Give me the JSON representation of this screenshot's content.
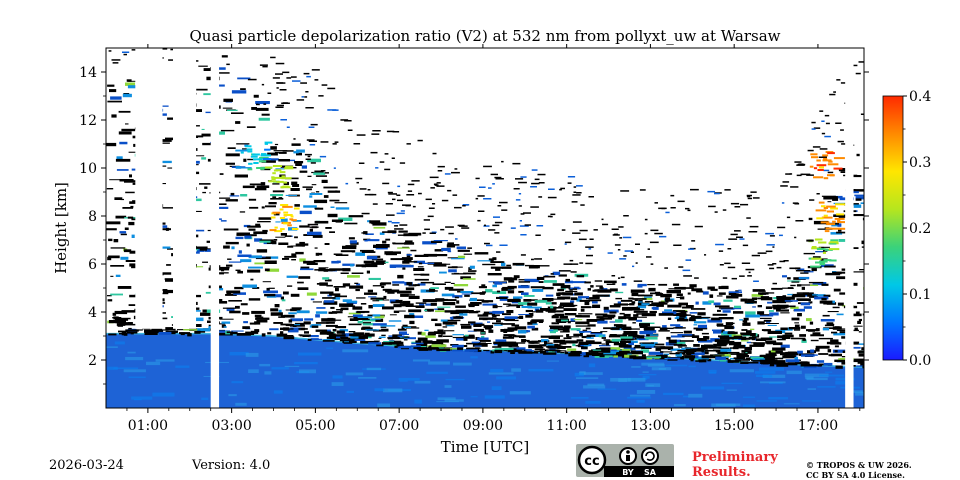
{
  "chart_data": {
    "type": "heatmap",
    "title": "Quasi particle depolarization ratio (V2) at 532 nm from pollyxt_uw at Warsaw",
    "xlabel": "Time [UTC]",
    "ylabel": "Height [km]",
    "xlim": [
      0.0,
      18.1
    ],
    "ylim": [
      0.0,
      15.0
    ],
    "x_ticks": [
      1,
      3,
      5,
      7,
      9,
      11,
      13,
      15,
      17
    ],
    "x_tick_labels": [
      "01:00",
      "03:00",
      "05:00",
      "07:00",
      "09:00",
      "11:00",
      "13:00",
      "15:00",
      "17:00"
    ],
    "y_ticks": [
      2,
      4,
      6,
      8,
      10,
      12,
      14
    ],
    "y_tick_labels": [
      "2",
      "4",
      "6",
      "8",
      "10",
      "12",
      "14"
    ],
    "colorbar": {
      "range": [
        0.0,
        0.4
      ],
      "ticks": [
        0.0,
        0.1,
        0.2,
        0.3,
        0.4
      ],
      "tick_labels": [
        "0.0",
        "0.1",
        "0.2",
        "0.3",
        "0.4"
      ],
      "colors": [
        "#1a1aff",
        "#0077ff",
        "#00c8e6",
        "#3bd27a",
        "#b6e61e",
        "#ffe600",
        "#ff8a00",
        "#ff2a00"
      ]
    },
    "boundary_layer_top_km": [
      {
        "t": 0.0,
        "h": 3.1
      },
      {
        "t": 2.5,
        "h": 3.1
      },
      {
        "t": 4.0,
        "h": 3.0
      },
      {
        "t": 6.0,
        "h": 2.7
      },
      {
        "t": 8.0,
        "h": 2.45
      },
      {
        "t": 10.0,
        "h": 2.35
      },
      {
        "t": 12.0,
        "h": 2.2
      },
      {
        "t": 14.0,
        "h": 2.05
      },
      {
        "t": 16.0,
        "h": 1.85
      },
      {
        "t": 18.1,
        "h": 1.7
      }
    ],
    "cloud_top_km": [
      {
        "t": 0.0,
        "h": 13.5
      },
      {
        "t": 2.8,
        "h": 14.8
      },
      {
        "t": 4.5,
        "h": 11.0
      },
      {
        "t": 6.0,
        "h": 8.0
      },
      {
        "t": 9.0,
        "h": 6.5
      },
      {
        "t": 12.0,
        "h": 5.3
      },
      {
        "t": 14.0,
        "h": 5.2
      },
      {
        "t": 16.0,
        "h": 5.0
      },
      {
        "t": 17.3,
        "h": 10.0
      },
      {
        "t": 18.1,
        "h": 11.0
      }
    ],
    "data_gaps": [
      {
        "t_start": 0.7,
        "t_end": 1.35,
        "h_min": 3.3,
        "h_max": 15.0
      },
      {
        "t_start": 1.6,
        "t_end": 2.15,
        "h_min": 3.3,
        "h_max": 15.0
      },
      {
        "t_start": 2.5,
        "t_end": 2.7,
        "h_min": 0.0,
        "h_max": 15.0
      },
      {
        "t_start": 17.65,
        "t_end": 17.85,
        "h_min": 0.0,
        "h_max": 15.0
      }
    ],
    "enhanced_features": [
      {
        "t": 3.5,
        "h": 10.5,
        "value": 0.12
      },
      {
        "t": 4.0,
        "h": 9.6,
        "value": 0.22
      },
      {
        "t": 4.2,
        "h": 8.0,
        "value": 0.3
      },
      {
        "t": 17.1,
        "h": 10.2,
        "value": 0.35
      },
      {
        "t": 17.2,
        "h": 8.0,
        "value": 0.34
      },
      {
        "t": 17.0,
        "h": 6.5,
        "value": 0.2
      }
    ]
  },
  "footer": {
    "date": "2026-03-24",
    "version": "Version: 4.0",
    "badge_by": "BY",
    "badge_sa": "SA",
    "preliminary": "Preliminary Results.",
    "copyright_line1": "© TROPOS & UW 2026.",
    "copyright_line2": "CC BY SA 4.0 License."
  }
}
